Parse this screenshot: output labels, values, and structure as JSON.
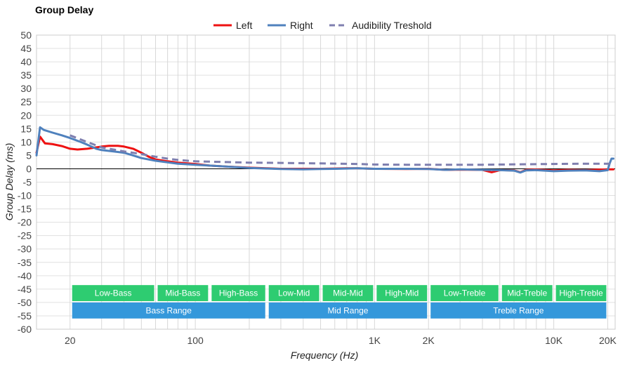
{
  "chart_data": {
    "type": "line",
    "title": "Group Delay",
    "xlabel": "Frequency (Hz)",
    "ylabel": "Group Delay (ms)",
    "x_scale": "log",
    "xlim": [
      13,
      22000
    ],
    "ylim": [
      -60,
      50
    ],
    "yticks": [
      50,
      45,
      40,
      35,
      30,
      25,
      20,
      15,
      10,
      5,
      0,
      -5,
      -10,
      -15,
      -20,
      -25,
      -30,
      -35,
      -40,
      -45,
      -50,
      -55,
      -60
    ],
    "xtick_labels": [
      {
        "value": 20,
        "label": "20"
      },
      {
        "value": 100,
        "label": "100"
      },
      {
        "value": 1000,
        "label": "1K"
      },
      {
        "value": 2000,
        "label": "2K"
      },
      {
        "value": 10000,
        "label": "10K"
      },
      {
        "value": 20000,
        "label": "20K"
      }
    ],
    "grid": true,
    "legend": {
      "placement": "top-center"
    },
    "series": [
      {
        "name": "Left",
        "color": "#ee1111",
        "style": "solid",
        "points": [
          [
            13,
            6
          ],
          [
            13.6,
            12
          ],
          [
            14.5,
            9.5
          ],
          [
            16,
            9.2
          ],
          [
            18,
            8.5
          ],
          [
            20,
            7.5
          ],
          [
            22,
            7.2
          ],
          [
            25,
            7.5
          ],
          [
            28,
            8
          ],
          [
            30,
            8.3
          ],
          [
            33,
            8.6
          ],
          [
            37,
            8.6
          ],
          [
            40,
            8.3
          ],
          [
            45,
            7.5
          ],
          [
            50,
            6
          ],
          [
            55,
            4.5
          ],
          [
            60,
            3.5
          ],
          [
            70,
            2.8
          ],
          [
            80,
            2.3
          ],
          [
            100,
            1.8
          ],
          [
            120,
            1.2
          ],
          [
            150,
            0.8
          ],
          [
            200,
            0.4
          ],
          [
            250,
            0.2
          ],
          [
            300,
            0
          ],
          [
            400,
            0
          ],
          [
            500,
            0
          ],
          [
            600,
            0.1
          ],
          [
            700,
            0.2
          ],
          [
            800,
            0.2
          ],
          [
            1000,
            0
          ],
          [
            1500,
            -0.1
          ],
          [
            2000,
            0
          ],
          [
            2500,
            -0.4
          ],
          [
            3000,
            -0.3
          ],
          [
            4000,
            -0.4
          ],
          [
            4500,
            -1.3
          ],
          [
            5000,
            -0.5
          ],
          [
            6000,
            -0.6
          ],
          [
            6500,
            -1.3
          ],
          [
            7000,
            -0.4
          ],
          [
            8000,
            -0.3
          ],
          [
            10000,
            -0.6
          ],
          [
            12000,
            -0.4
          ],
          [
            15000,
            -0.5
          ],
          [
            18000,
            -0.3
          ],
          [
            20000,
            -0.2
          ],
          [
            21500,
            -0.2
          ]
        ]
      },
      {
        "name": "Right",
        "color": "#4f81bd",
        "style": "solid",
        "points": [
          [
            13,
            5
          ],
          [
            13.6,
            15.5
          ],
          [
            14.3,
            14.5
          ],
          [
            16,
            13.5
          ],
          [
            18,
            12.5
          ],
          [
            20,
            11.5
          ],
          [
            23,
            10
          ],
          [
            25,
            9
          ],
          [
            28,
            7.5
          ],
          [
            30,
            7
          ],
          [
            35,
            6.5
          ],
          [
            40,
            6
          ],
          [
            45,
            5
          ],
          [
            50,
            4
          ],
          [
            60,
            3
          ],
          [
            70,
            2.4
          ],
          [
            80,
            1.9
          ],
          [
            100,
            1.5
          ],
          [
            120,
            1.2
          ],
          [
            150,
            0.8
          ],
          [
            200,
            0.3
          ],
          [
            250,
            0.1
          ],
          [
            300,
            -0.1
          ],
          [
            400,
            -0.2
          ],
          [
            500,
            -0.1
          ],
          [
            600,
            0
          ],
          [
            700,
            0.1
          ],
          [
            800,
            0.2
          ],
          [
            1000,
            0
          ],
          [
            1500,
            0
          ],
          [
            2000,
            -0.1
          ],
          [
            2500,
            -0.4
          ],
          [
            3000,
            -0.2
          ],
          [
            4000,
            -0.4
          ],
          [
            5000,
            -0.5
          ],
          [
            6000,
            -0.7
          ],
          [
            6500,
            -1.4
          ],
          [
            7000,
            -0.6
          ],
          [
            8000,
            -0.5
          ],
          [
            10000,
            -0.9
          ],
          [
            12000,
            -0.7
          ],
          [
            15000,
            -0.6
          ],
          [
            18000,
            -0.9
          ],
          [
            20000,
            -0.5
          ],
          [
            20500,
            2
          ],
          [
            21000,
            3.8
          ],
          [
            21500,
            3.8
          ]
        ]
      },
      {
        "name": "Audibility Treshold",
        "color": "#7f7faf",
        "style": "dashed",
        "points": [
          [
            20,
            12.5
          ],
          [
            25,
            10
          ],
          [
            30,
            8
          ],
          [
            40,
            6.5
          ],
          [
            50,
            5.5
          ],
          [
            60,
            4.5
          ],
          [
            70,
            3.8
          ],
          [
            80,
            3.3
          ],
          [
            100,
            2.8
          ],
          [
            150,
            2.5
          ],
          [
            200,
            2.3
          ],
          [
            300,
            2.2
          ],
          [
            500,
            2
          ],
          [
            800,
            1.8
          ],
          [
            1000,
            1.6
          ],
          [
            1500,
            1.5
          ],
          [
            2000,
            1.5
          ],
          [
            3000,
            1.5
          ],
          [
            4000,
            1.5
          ],
          [
            5000,
            1.6
          ],
          [
            7000,
            1.7
          ],
          [
            10000,
            1.8
          ],
          [
            15000,
            1.9
          ],
          [
            20000,
            1.9
          ],
          [
            21500,
            1.9
          ]
        ]
      }
    ],
    "ranges": [
      {
        "label": "Low-Bass",
        "from": 20,
        "to": 60,
        "row": 1,
        "color": "#2ecc71"
      },
      {
        "label": "Mid-Bass",
        "from": 60,
        "to": 120,
        "row": 1,
        "color": "#2ecc71"
      },
      {
        "label": "High-Bass",
        "from": 120,
        "to": 250,
        "row": 1,
        "color": "#2ecc71"
      },
      {
        "label": "Low-Mid",
        "from": 250,
        "to": 500,
        "row": 1,
        "color": "#2ecc71"
      },
      {
        "label": "Mid-Mid",
        "from": 500,
        "to": 1000,
        "row": 1,
        "color": "#2ecc71"
      },
      {
        "label": "High-Mid",
        "from": 1000,
        "to": 2000,
        "row": 1,
        "color": "#2ecc71"
      },
      {
        "label": "Low-Treble",
        "from": 2000,
        "to": 5000,
        "row": 1,
        "color": "#2ecc71"
      },
      {
        "label": "Mid-Treble",
        "from": 5000,
        "to": 10000,
        "row": 1,
        "color": "#2ecc71"
      },
      {
        "label": "High-Treble",
        "from": 10000,
        "to": 20000,
        "row": 1,
        "color": "#2ecc71"
      },
      {
        "label": "Bass Range",
        "from": 20,
        "to": 250,
        "row": 2,
        "color": "#3498db"
      },
      {
        "label": "Mid Range",
        "from": 250,
        "to": 2000,
        "row": 2,
        "color": "#3498db"
      },
      {
        "label": "Treble Range",
        "from": 2000,
        "to": 20000,
        "row": 2,
        "color": "#3498db"
      }
    ]
  }
}
